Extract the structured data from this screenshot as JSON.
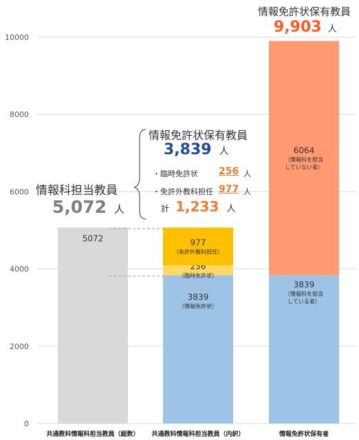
{
  "chart_data": {
    "type": "bar",
    "stacked": true,
    "categories": [
      "共通教科情報科担当教員（総数）",
      "共通教科情報科担当教員（内訳）",
      "情報免許状保有者"
    ],
    "ylim": [
      0,
      10000
    ],
    "yticks": [
      0,
      2000,
      4000,
      6000,
      8000,
      10000
    ],
    "grid": true,
    "bars": [
      {
        "segments": [
          {
            "value": 5072,
            "color": "#d9d9d9",
            "label": "5072",
            "sublabel": []
          }
        ]
      },
      {
        "segments": [
          {
            "value": 3839,
            "color": "#9dc3e6",
            "label": "3839",
            "sublabel": [
              "（情報免許状）"
            ]
          },
          {
            "value": 256,
            "color": "#ffd966",
            "label": "256",
            "sublabel": [
              "（臨時免許状）"
            ]
          },
          {
            "value": 977,
            "color": "#ffc000",
            "label": "977",
            "sublabel": [
              "（免許外教科担任）"
            ]
          }
        ]
      },
      {
        "segments": [
          {
            "value": 3839,
            "color": "#9dc3e6",
            "label": "3839",
            "sublabel": [
              "（情報科を担当",
              "している者）"
            ]
          },
          {
            "value": 6064,
            "color": "#ff9a73",
            "label": "6064",
            "sublabel": [
              "（情報科を担当",
              "していない者）"
            ]
          }
        ]
      }
    ]
  },
  "annotations": {
    "total_teachers": {
      "title": "情報科担当教員",
      "value": "5,072",
      "unit": "人"
    },
    "license_holders_in_charge": {
      "title": "情報免許状保有教員",
      "value": "3,839",
      "unit": "人"
    },
    "temporary": {
      "label": "・臨時免許状",
      "value": "256",
      "unit": "人"
    },
    "out_of_field": {
      "label": "・免許外教科担任",
      "value": "977",
      "unit": "人"
    },
    "subtotal": {
      "label": "計",
      "value": "1,233",
      "unit": "人"
    },
    "license_holders_total": {
      "title": "情報免許状保有教員",
      "value": "9,903",
      "unit": "人"
    }
  },
  "colors": {
    "gray_value": "#7f7f7f",
    "blue_value": "#1f4e9e",
    "orange_value": "#ed7d31",
    "accent_red": "#ff5a1f"
  }
}
